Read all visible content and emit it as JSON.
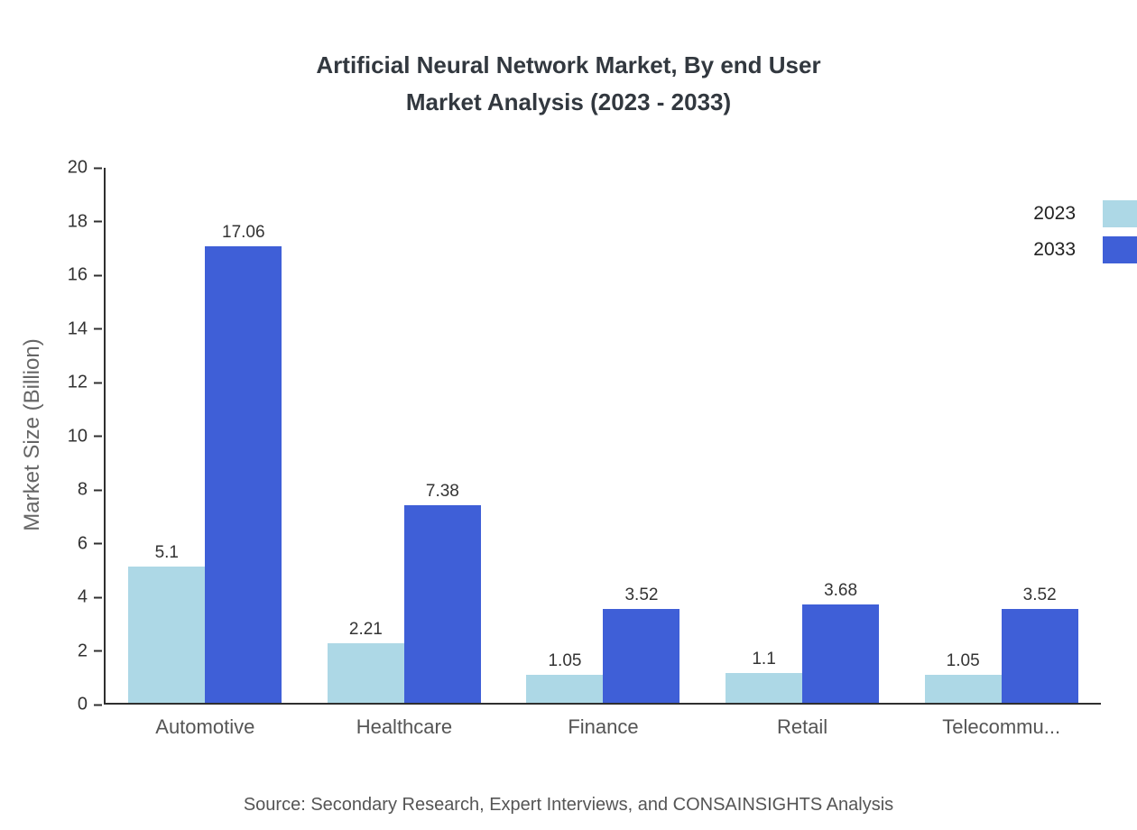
{
  "title_line1": "Artificial Neural Network Market, By end User",
  "title_line2": "Market Analysis (2023 - 2033)",
  "source": "Source: Secondary Research, Expert Interviews, and CONSAINSIGHTS Analysis",
  "chart_data": {
    "type": "bar",
    "title": "Artificial Neural Network Market, By end User Market Analysis (2023 - 2033)",
    "categories": [
      "Automotive",
      "Healthcare",
      "Finance",
      "Retail",
      "Telecommu..."
    ],
    "series": [
      {
        "name": "2023",
        "color": "#add8e6",
        "values": [
          5.1,
          2.21,
          1.05,
          1.1,
          1.05
        ]
      },
      {
        "name": "2033",
        "color": "#3f5fd7",
        "values": [
          17.06,
          7.38,
          3.52,
          3.68,
          3.52
        ]
      }
    ],
    "xlabel": "",
    "ylabel": "Market Size (Billion)",
    "ylim": [
      0,
      20
    ],
    "ytick_step": 2,
    "grid": false,
    "legend_position": "top-right"
  }
}
